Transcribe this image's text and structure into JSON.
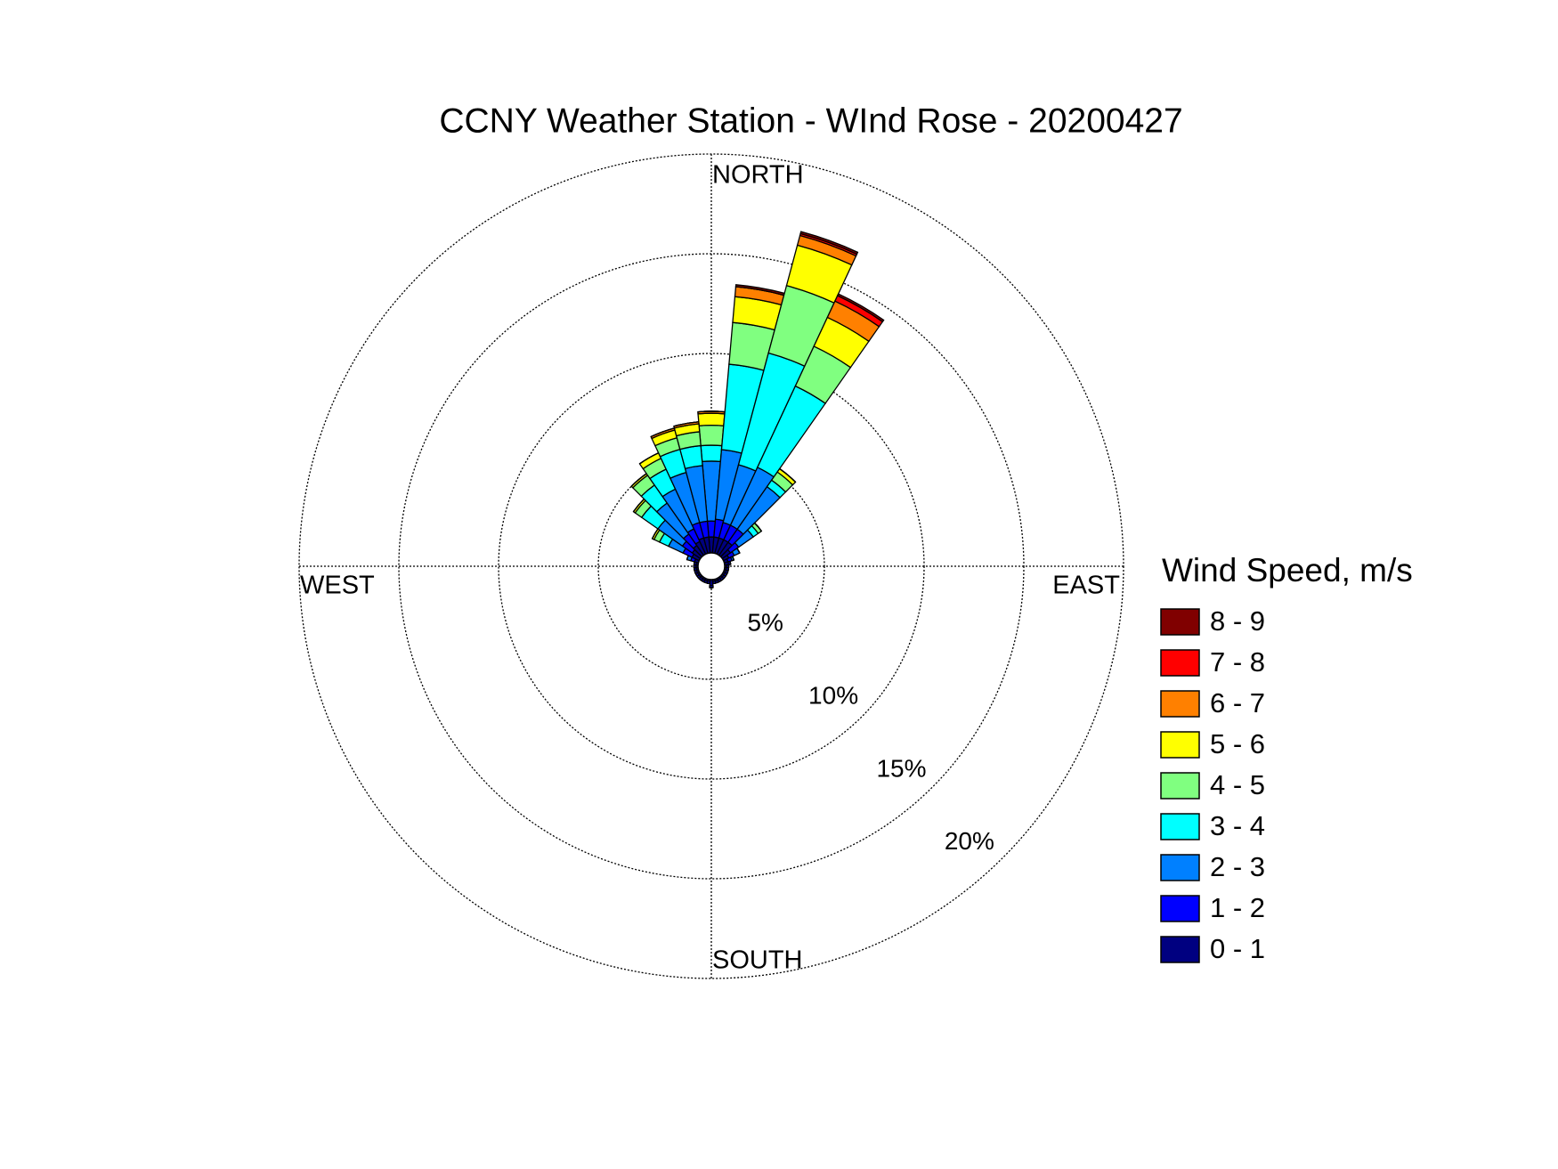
{
  "chart_data": {
    "type": "windrose",
    "title": "CCNY Weather Station - WInd Rose - 20200427",
    "direction_labels": [
      "NORTH",
      "EAST",
      "SOUTH",
      "WEST"
    ],
    "x": [
      0,
      10,
      20,
      30,
      40,
      50,
      60,
      70,
      80,
      90,
      100,
      110,
      120,
      130,
      140,
      150,
      160,
      170,
      180,
      190,
      200,
      210,
      220,
      230,
      240,
      250,
      260,
      270,
      280,
      290,
      300,
      310,
      320,
      330,
      340,
      350
    ],
    "xlim": [
      0,
      360
    ],
    "ylim": [
      0,
      20
    ],
    "yticks": [
      {
        "value": 5,
        "label": "5%"
      },
      {
        "value": 10,
        "label": "10%"
      },
      {
        "value": 15,
        "label": "15%"
      },
      {
        "value": 20,
        "label": "20%"
      }
    ],
    "grid": true,
    "legend_title": "Wind Speed, m/s",
    "legend": "right",
    "series": [
      {
        "name": "0 - 1",
        "color": "#000080",
        "values": [
          0.8,
          0.8,
          0.8,
          0.8,
          0.8,
          0.5,
          0.3,
          0.2,
          0.2,
          0.1,
          0.1,
          0.1,
          0.1,
          0.1,
          0.1,
          0.1,
          0.1,
          0.1,
          0.3,
          0.1,
          0.1,
          0.1,
          0.1,
          0.1,
          0.1,
          0.1,
          0.1,
          0.1,
          0.1,
          0.2,
          0.4,
          0.5,
          0.6,
          0.7,
          0.8,
          0.8
        ]
      },
      {
        "name": "1 - 2",
        "color": "#0000ff",
        "values": [
          0.8,
          0.9,
          0.8,
          0.8,
          0.8,
          0.5,
          0.3,
          0.2,
          0.1,
          0.1,
          0.1,
          0.1,
          0.1,
          0.1,
          0.1,
          0.1,
          0.1,
          0.1,
          0.1,
          0.1,
          0.1,
          0.1,
          0.1,
          0.1,
          0.1,
          0.1,
          0.1,
          0.1,
          0.1,
          0.2,
          0.5,
          0.6,
          0.7,
          0.7,
          0.8,
          0.8
        ]
      },
      {
        "name": "2 - 3",
        "color": "#0080ff",
        "values": [
          3.0,
          3.5,
          3.0,
          3.2,
          2.6,
          0.9,
          0.3,
          0.1,
          0,
          0,
          0,
          0,
          0,
          0,
          0,
          0,
          0,
          0,
          0,
          0,
          0,
          0,
          0,
          0,
          0,
          0,
          0,
          0,
          0,
          0.2,
          0.8,
          1.5,
          1.9,
          2.2,
          2.6,
          2.8
        ]
      },
      {
        "name": "3 - 4",
        "color": "#00ffff",
        "values": [
          0.8,
          4.3,
          5.8,
          4.5,
          0.4,
          0.3,
          0,
          0,
          0,
          0,
          0,
          0,
          0,
          0,
          0,
          0,
          0,
          0,
          0,
          0,
          0,
          0,
          0,
          0,
          0,
          0,
          0,
          0,
          0,
          0,
          0.5,
          1.0,
          1.1,
          1.1,
          1.2,
          1.0
        ]
      },
      {
        "name": "4 - 5",
        "color": "#80ff80",
        "values": [
          1.0,
          2.1,
          3.5,
          2.2,
          0.5,
          0.2,
          0,
          0,
          0,
          0,
          0,
          0,
          0,
          0,
          0,
          0,
          0,
          0,
          0,
          0,
          0,
          0,
          0,
          0,
          0,
          0,
          0,
          0,
          0,
          0,
          0.3,
          0.4,
          0.6,
          0.6,
          0.6,
          0.7
        ]
      },
      {
        "name": "5 - 6",
        "color": "#ffff00",
        "values": [
          0.6,
          1.3,
          2.1,
          1.6,
          0.2,
          0,
          0,
          0,
          0,
          0,
          0,
          0,
          0,
          0,
          0,
          0,
          0,
          0,
          0,
          0,
          0,
          0,
          0,
          0,
          0,
          0,
          0,
          0,
          0,
          0,
          0.1,
          0.1,
          0.1,
          0.3,
          0.4,
          0.4
        ]
      },
      {
        "name": "6 - 7",
        "color": "#ff8000",
        "values": [
          0.1,
          0.5,
          0.5,
          0.9,
          0,
          0,
          0,
          0,
          0,
          0,
          0,
          0,
          0,
          0,
          0,
          0,
          0,
          0,
          0,
          0,
          0,
          0,
          0,
          0,
          0,
          0,
          0,
          0,
          0,
          0,
          0,
          0,
          0,
          0,
          0.1,
          0.1
        ]
      },
      {
        "name": "7 - 8",
        "color": "#ff0000",
        "values": [
          0,
          0,
          0.1,
          0.3,
          0,
          0,
          0,
          0,
          0,
          0,
          0,
          0,
          0,
          0,
          0,
          0,
          0,
          0,
          0,
          0,
          0,
          0,
          0,
          0,
          0,
          0,
          0,
          0,
          0,
          0,
          0,
          0,
          0,
          0,
          0,
          0
        ]
      },
      {
        "name": "8 - 9",
        "color": "#800000",
        "values": [
          0,
          0.1,
          0.1,
          0.1,
          0,
          0,
          0,
          0,
          0,
          0,
          0,
          0,
          0,
          0,
          0,
          0,
          0,
          0,
          0,
          0,
          0,
          0,
          0,
          0,
          0,
          0,
          0,
          0,
          0,
          0,
          0,
          0,
          0,
          0,
          0,
          0
        ]
      }
    ]
  }
}
